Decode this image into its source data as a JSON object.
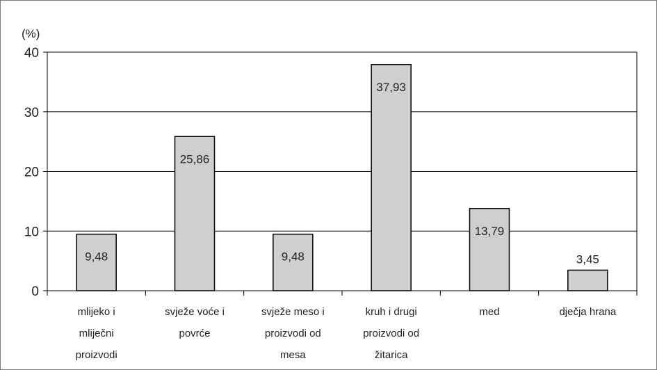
{
  "chart_data": {
    "type": "bar",
    "title": "",
    "xlabel": "",
    "ylabel": "(%)",
    "ylim": [
      0,
      40
    ],
    "yticks": [
      0,
      10,
      20,
      30,
      40
    ],
    "grid": true,
    "categories": [
      [
        "mlijeko i",
        "mliječni",
        "proizvodi"
      ],
      [
        "svježe voće i",
        "povrće"
      ],
      [
        "svježe meso i",
        "proizvodi od",
        "mesa"
      ],
      [
        "kruh i drugi",
        "proizvodi od",
        "žitarica"
      ],
      [
        "med"
      ],
      [
        "dječja hrana"
      ]
    ],
    "values": [
      9.48,
      25.86,
      9.48,
      37.93,
      13.79,
      3.45
    ],
    "data_labels": [
      "9,48",
      "25,86",
      "9,48",
      "37,93",
      "13,79",
      "3,45"
    ],
    "colors": {
      "bar_fill": "#cfcfcf",
      "bar_stroke": "#000000",
      "grid": "#000000",
      "text": "#222222"
    }
  }
}
